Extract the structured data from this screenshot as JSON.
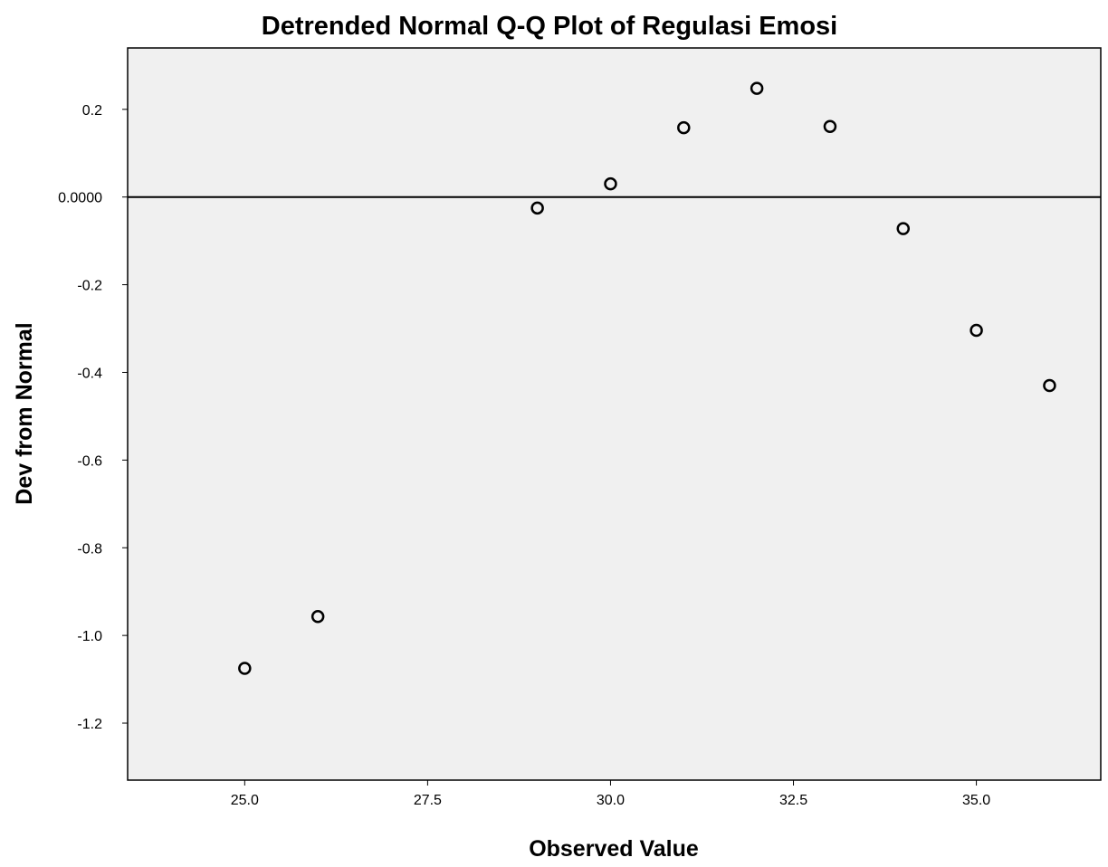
{
  "chart_data": {
    "type": "scatter",
    "title": "Detrended Normal Q-Q Plot of Regulasi Emosi",
    "xlabel": "Observed Value",
    "ylabel": "Dev from Normal",
    "xlim": [
      23.4,
      36.7
    ],
    "ylim": [
      -1.33,
      0.34
    ],
    "xticks": [
      25.0,
      27.5,
      30.0,
      32.5,
      35.0
    ],
    "xtick_labels": [
      "25.0",
      "27.5",
      "30.0",
      "32.5",
      "35.0"
    ],
    "yticks": [
      0.2,
      0.0,
      -0.2,
      -0.4,
      -0.6,
      -0.8,
      -1.0,
      -1.2
    ],
    "ytick_labels": [
      "0.2",
      "0.0000",
      "-0.2",
      "-0.4",
      "-0.6",
      "-0.8",
      "-1.0",
      "-1.2"
    ],
    "reference_line_y": 0.0,
    "grid": false,
    "points": [
      {
        "x": 25,
        "y": -1.075
      },
      {
        "x": 26,
        "y": -0.957
      },
      {
        "x": 29,
        "y": -0.025
      },
      {
        "x": 30,
        "y": 0.03
      },
      {
        "x": 31,
        "y": 0.158
      },
      {
        "x": 32,
        "y": 0.248
      },
      {
        "x": 33,
        "y": 0.161
      },
      {
        "x": 34,
        "y": -0.072
      },
      {
        "x": 35,
        "y": -0.304
      },
      {
        "x": 36,
        "y": -0.43
      }
    ],
    "colors": {
      "plot_background": "#f0f0f0",
      "marker_stroke": "#000000",
      "axis": "#000000"
    }
  }
}
